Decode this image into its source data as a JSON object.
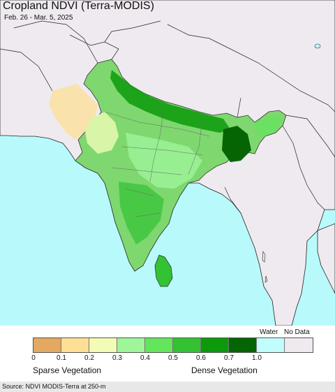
{
  "map": {
    "title": "Cropland NDVI (Terra-MODIS)",
    "date_range": "Feb. 26 - Mar. 5, 2025"
  },
  "legend": {
    "water_label": "Water",
    "nodata_label": "No Data",
    "ticks": [
      "0",
      "0.1",
      "0.2",
      "0.3",
      "0.4",
      "0.5",
      "0.6",
      "0.7",
      "1.0"
    ],
    "colors": [
      "#e3a862",
      "#fddf95",
      "#f3fcb7",
      "#9ef59a",
      "#63e65c",
      "#33c233",
      "#0c9a0c",
      "#056505",
      "#c2fdfd",
      "#efeaef"
    ],
    "sparse_label": "Sparse Vegetation",
    "dense_label": "Dense Vegetation"
  },
  "source": "Source: NDVI MODIS-Terra at 250-m",
  "palette": {
    "ocean": "#b8fafc",
    "nodata_land": "#efeaf0",
    "border": "#222222"
  }
}
